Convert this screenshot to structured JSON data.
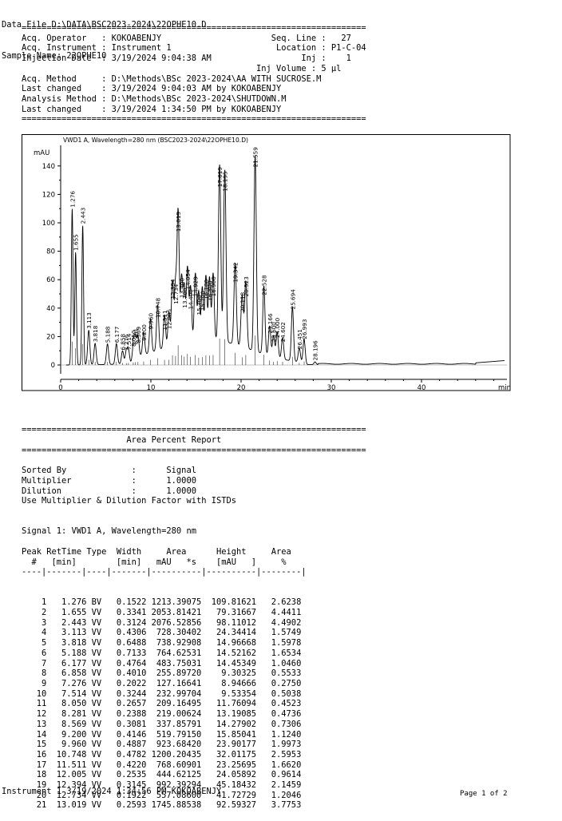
{
  "header": {
    "data_file": "Data File D:\\DATA\\BSC2023-2024\\22OPHE10.D",
    "sample_name": "Sample Name: 22OPHE10"
  },
  "meta_lines": [
    "=====================================================================",
    "Acq. Operator   : KOKOABENJY                      Seq. Line :   27",
    "Acq. Instrument : Instrument 1                     Location : P1-C-04",
    "Injection Date  : 3/19/2024 9:04:38 AM                  Inj :    1",
    "                                               Inj Volume : 5 µl",
    "Acq. Method     : D:\\Methods\\BSc 2023-2024\\AA WITH SUCROSE.M",
    "Last changed    : 3/19/2024 9:04:03 AM by KOKOABENJY",
    "Analysis Method : D:\\Methods\\BSc 2023-2024\\SHUTDOWN.M",
    "Last changed    : 3/19/2024 1:34:50 PM by KOKOABENJY",
    "====================================================================="
  ],
  "chart_data": {
    "type": "line",
    "title": "VWD1 A, Wavelength=280 nm (BSC2023-2024\\22OPHE10.D)",
    "ylabel": "mAU",
    "xlabel": "min",
    "xlim": [
      0,
      49.5
    ],
    "ylim": [
      -14,
      150
    ],
    "xticks": [
      0,
      10,
      20,
      30,
      40
    ],
    "yticks": [
      0,
      20,
      40,
      60,
      80,
      100,
      120,
      140
    ],
    "peaks": [
      {
        "rt": 1.276,
        "label": "1.276",
        "height": 109.8
      },
      {
        "rt": 1.655,
        "label": "1.655",
        "height": 79.3
      },
      {
        "rt": 2.443,
        "label": "2.443",
        "height": 98.1
      },
      {
        "rt": 3.113,
        "label": "3.113",
        "height": 24.3
      },
      {
        "rt": 3.818,
        "label": "3.818",
        "height": 15.0
      },
      {
        "rt": 5.188,
        "label": "5.188",
        "height": 14.5
      },
      {
        "rt": 6.177,
        "label": "6.177",
        "height": 14.5
      },
      {
        "rt": 6.858,
        "label": "6.858",
        "height": 9.3
      },
      {
        "rt": 7.276,
        "label": "7.276",
        "height": 8.9
      },
      {
        "rt": 7.514,
        "label": "7.514",
        "height": 9.5
      },
      {
        "rt": 8.05,
        "label": "8.050",
        "height": 11.8
      },
      {
        "rt": 8.281,
        "label": "8.281",
        "height": 13.2
      },
      {
        "rt": 8.569,
        "label": "8.569",
        "height": 14.3
      },
      {
        "rt": 9.2,
        "label": "9.200",
        "height": 15.9
      },
      {
        "rt": 9.96,
        "label": "9.960",
        "height": 23.9
      },
      {
        "rt": 10.748,
        "label": "10.748",
        "height": 32.0
      },
      {
        "rt": 11.511,
        "label": "11.511",
        "height": 23.3
      },
      {
        "rt": 12.005,
        "label": "12.005",
        "height": 24.1
      },
      {
        "rt": 12.394,
        "label": "12.394",
        "height": 45.2
      },
      {
        "rt": 12.734,
        "label": "12.734",
        "height": 41.7
      },
      {
        "rt": 13.019,
        "label": "13.019",
        "height": 92.6
      },
      {
        "rt": 13.4,
        "label": "13.400",
        "height": 46
      },
      {
        "rt": 13.7,
        "label": "13.700",
        "height": 39
      },
      {
        "rt": 14.054,
        "label": "14.054",
        "height": 52
      },
      {
        "rt": 14.4,
        "label": "14.400",
        "height": 38
      },
      {
        "rt": 14.929,
        "label": "14.929",
        "height": 47
      },
      {
        "rt": 15.3,
        "label": "15.300",
        "height": 34
      },
      {
        "rt": 15.7,
        "label": "15.700",
        "height": 37
      },
      {
        "rt": 16.1,
        "label": "16.100",
        "height": 45
      },
      {
        "rt": 16.5,
        "label": "16.500",
        "height": 44
      },
      {
        "rt": 16.9,
        "label": "16.900",
        "height": 47
      },
      {
        "rt": 17.619,
        "label": "17.619",
        "height": 124
      },
      {
        "rt": 18.195,
        "label": "18.195",
        "height": 121
      },
      {
        "rt": 19.342,
        "label": "19.342",
        "height": 57
      },
      {
        "rt": 20.118,
        "label": "20.118",
        "height": 36
      },
      {
        "rt": 20.523,
        "label": "20.523",
        "height": 47
      },
      {
        "rt": 21.559,
        "label": "21.559",
        "height": 138
      },
      {
        "rt": 22.528,
        "label": "22.528",
        "height": 48
      },
      {
        "rt": 23.166,
        "label": "23.166",
        "height": 21
      },
      {
        "rt": 23.6,
        "label": "23.600",
        "height": 15
      },
      {
        "rt": 24.0,
        "label": "24.000",
        "height": 18
      },
      {
        "rt": 24.602,
        "label": "24.602",
        "height": 15
      },
      {
        "rt": 25.694,
        "label": "25.694",
        "height": 38
      },
      {
        "rt": 26.451,
        "label": "26.451",
        "height": 10
      },
      {
        "rt": 26.993,
        "label": "26.993",
        "height": 17
      },
      {
        "rt": 28.196,
        "label": "28.196",
        "height": 2
      }
    ]
  },
  "report_lines": [
    "=====================================================================",
    "                     Area Percent Report",
    "=====================================================================",
    "",
    "Sorted By             :      Signal",
    "Multiplier            :      1.0000",
    "Dilution              :      1.0000",
    "Use Multiplier & Dilution Factor with ISTDs",
    "",
    "",
    "Signal 1: VWD1 A, Wavelength=280 nm",
    "",
    "Peak RetTime Type  Width     Area      Height     Area",
    "  #   [min]        [min]   mAU   *s    [mAU   ]     %",
    "----|-------|----|-------|----------|----------|--------|"
  ],
  "table": [
    [
      "1",
      "1.276",
      "BV",
      "0.1522",
      "1213.39075",
      "109.81621",
      "2.6238"
    ],
    [
      "2",
      "1.655",
      "VV",
      "0.3341",
      "2053.81421",
      "79.31667",
      "4.4411"
    ],
    [
      "3",
      "2.443",
      "VV",
      "0.3124",
      "2076.52856",
      "98.11012",
      "4.4902"
    ],
    [
      "4",
      "3.113",
      "VV",
      "0.4306",
      "728.30402",
      "24.34414",
      "1.5749"
    ],
    [
      "5",
      "3.818",
      "VV",
      "0.6488",
      "738.92908",
      "14.96668",
      "1.5978"
    ],
    [
      "6",
      "5.188",
      "VV",
      "0.7133",
      "764.62531",
      "14.52162",
      "1.6534"
    ],
    [
      "7",
      "6.177",
      "VV",
      "0.4764",
      "483.75031",
      "14.45349",
      "1.0460"
    ],
    [
      "8",
      "6.858",
      "VV",
      "0.4010",
      "255.89720",
      "9.30325",
      "0.5533"
    ],
    [
      "9",
      "7.276",
      "VV",
      "0.2022",
      "127.16641",
      "8.94666",
      "0.2750"
    ],
    [
      "10",
      "7.514",
      "VV",
      "0.3244",
      "232.99704",
      "9.53354",
      "0.5038"
    ],
    [
      "11",
      "8.050",
      "VV",
      "0.2657",
      "209.16495",
      "11.76094",
      "0.4523"
    ],
    [
      "12",
      "8.281",
      "VV",
      "0.2388",
      "219.00624",
      "13.19085",
      "0.4736"
    ],
    [
      "13",
      "8.569",
      "VV",
      "0.3081",
      "337.85791",
      "14.27902",
      "0.7306"
    ],
    [
      "14",
      "9.200",
      "VV",
      "0.4146",
      "519.79150",
      "15.85041",
      "1.1240"
    ],
    [
      "15",
      "9.960",
      "VV",
      "0.4887",
      "923.68420",
      "23.90177",
      "1.9973"
    ],
    [
      "16",
      "10.748",
      "VV",
      "0.4782",
      "1200.20435",
      "32.01175",
      "2.5953"
    ],
    [
      "17",
      "11.511",
      "VV",
      "0.4220",
      "768.60901",
      "23.25695",
      "1.6620"
    ],
    [
      "18",
      "12.005",
      "VV",
      "0.2535",
      "444.62125",
      "24.05892",
      "0.9614"
    ],
    [
      "19",
      "12.394",
      "VV",
      "0.3145",
      "992.39294",
      "45.18432",
      "2.1459"
    ],
    [
      "20",
      "12.734",
      "VV",
      "0.1922",
      "557.08600",
      "41.72729",
      "1.2046"
    ],
    [
      "21",
      "13.019",
      "VV",
      "0.2593",
      "1745.88538",
      "92.59327",
      "3.7753"
    ]
  ],
  "footer": {
    "left": "Instrument 1 3/19/2024 1:34:56 PM KOKOABENJY",
    "right": "Page 1 of 2"
  }
}
